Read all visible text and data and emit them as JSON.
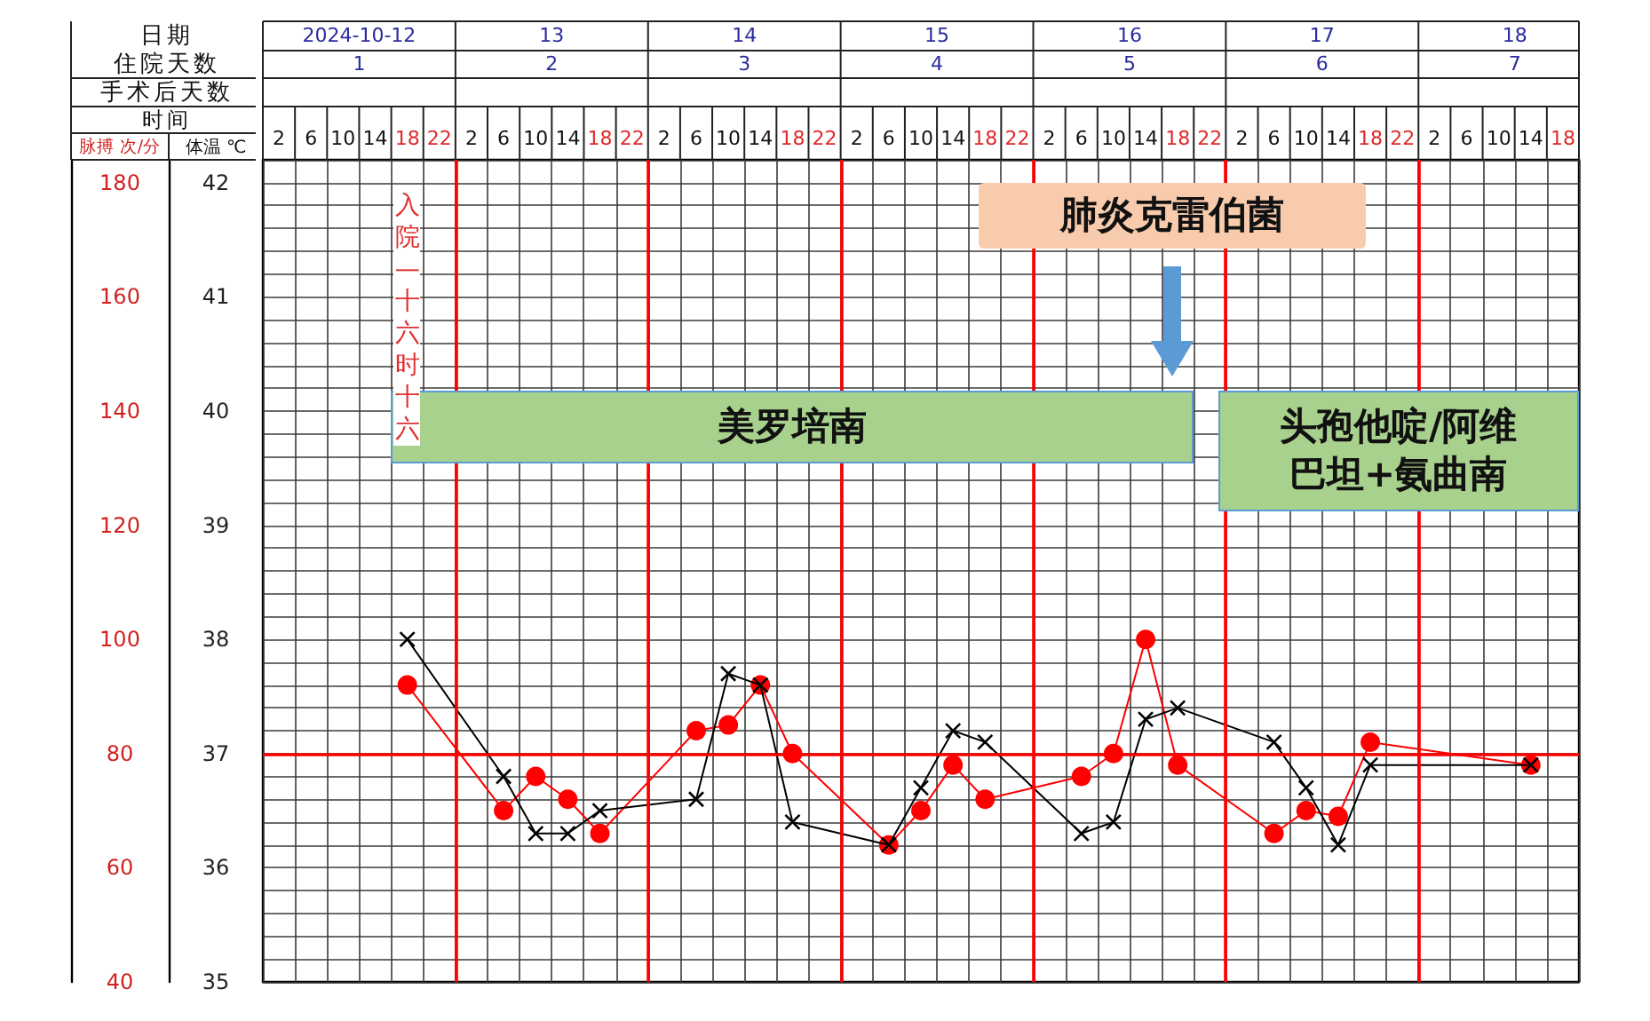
{
  "chart_data": {
    "type": "line",
    "xlabel": "时间",
    "x2label": "日期",
    "ylabel": "体温 ℃",
    "y2label": "脉搏 次/分",
    "x": [
      "2024-10-12T18:00",
      "2024-10-13T06:00",
      "2024-10-13T10:00",
      "2024-10-13T14:00",
      "2024-10-13T18:00",
      "2024-10-14T06:00",
      "2024-10-14T10:00",
      "2024-10-14T14:00",
      "2024-10-14T18:00",
      "2024-10-15T06:00",
      "2024-10-15T10:00",
      "2024-10-15T14:00",
      "2024-10-15T18:00",
      "2024-10-16T06:00",
      "2024-10-16T10:00",
      "2024-10-16T14:00",
      "2024-10-16T18:00",
      "2024-10-17T06:00",
      "2024-10-17T10:00",
      "2024-10-17T14:00",
      "2024-10-17T18:00",
      "2024-10-18T14:00"
    ],
    "series": [
      {
        "color": "#ff0000",
        "axis": "y2",
        "marker": "circle",
        "values": [
          92,
          70,
          76,
          72,
          66,
          84,
          85,
          92,
          80,
          64,
          70,
          78,
          72,
          76,
          80,
          100,
          78,
          66,
          70,
          69,
          82,
          78
        ]
      },
      {
        "color": "#000000",
        "marker": "cross",
        "values": [
          38.0,
          36.8,
          36.3,
          36.3,
          36.5,
          36.6,
          37.7,
          37.6,
          36.4,
          36.2,
          36.7,
          37.2,
          37.1,
          36.3,
          36.4,
          37.3,
          37.4,
          37.1,
          36.7,
          36.2,
          36.9,
          36.9
        ]
      }
    ],
    "xlim": [
      "2024-10-12T00:00",
      "2024-10-18T20:00"
    ],
    "xticks": [
      {
        "value": "2024-10-12T02:00",
        "label": "2"
      },
      {
        "value": "2024-10-12T06:00",
        "label": "6"
      },
      {
        "value": "2024-10-12T10:00",
        "label": "10"
      },
      {
        "value": "2024-10-12T14:00",
        "label": "14"
      },
      {
        "value": "2024-10-12T18:00",
        "label": "18"
      },
      {
        "value": "2024-10-12T22:00",
        "label": "22"
      },
      {
        "value": "2024-10-13T02:00",
        "label": "2"
      },
      {
        "value": "2024-10-13T06:00",
        "label": "6"
      },
      {
        "value": "2024-10-13T10:00",
        "label": "10"
      },
      {
        "value": "2024-10-13T14:00",
        "label": "14"
      },
      {
        "value": "2024-10-13T18:00",
        "label": "18"
      },
      {
        "value": "2024-10-13T22:00",
        "label": "22"
      },
      {
        "value": "2024-10-14T02:00",
        "label": "2"
      },
      {
        "value": "2024-10-14T06:00",
        "label": "6"
      },
      {
        "value": "2024-10-14T10:00",
        "label": "10"
      },
      {
        "value": "2024-10-14T14:00",
        "label": "14"
      },
      {
        "value": "2024-10-14T18:00",
        "label": "18"
      },
      {
        "value": "2024-10-14T22:00",
        "label": "22"
      },
      {
        "value": "2024-10-15T02:00",
        "label": "2"
      },
      {
        "value": "2024-10-15T06:00",
        "label": "6"
      },
      {
        "value": "2024-10-15T10:00",
        "label": "10"
      },
      {
        "value": "2024-10-15T14:00",
        "label": "14"
      },
      {
        "value": "2024-10-15T18:00",
        "label": "18"
      },
      {
        "value": "2024-10-15T22:00",
        "label": "22"
      },
      {
        "value": "2024-10-16T02:00",
        "label": "2"
      },
      {
        "value": "2024-10-16T06:00",
        "label": "6"
      },
      {
        "value": "2024-10-16T10:00",
        "label": "10"
      },
      {
        "value": "2024-10-16T14:00",
        "label": "14"
      },
      {
        "value": "2024-10-16T18:00",
        "label": "18"
      },
      {
        "value": "2024-10-16T22:00",
        "label": "22"
      },
      {
        "value": "2024-10-17T02:00",
        "label": "2"
      },
      {
        "value": "2024-10-17T06:00",
        "label": "6"
      },
      {
        "value": "2024-10-17T10:00",
        "label": "10"
      },
      {
        "value": "2024-10-17T14:00",
        "label": "14"
      },
      {
        "value": "2024-10-17T18:00",
        "label": "18"
      },
      {
        "value": "2024-10-17T22:00",
        "label": "22"
      },
      {
        "value": "2024-10-18T02:00",
        "label": "2"
      },
      {
        "value": "2024-10-18T06:00",
        "label": "6"
      },
      {
        "value": "2024-10-18T10:00",
        "label": "10"
      },
      {
        "value": "2024-10-18T14:00",
        "label": "14"
      },
      {
        "value": "2024-10-18T18:00",
        "label": "18"
      }
    ],
    "x2lim": [
      "2024-10-12T00:00",
      "2024-10-18T20:00"
    ],
    "x2ticks": [
      {
        "value": "2024-10-12T12:00",
        "label": "2024-10-12"
      },
      {
        "value": "2024-10-13T12:00",
        "label": "13"
      },
      {
        "value": "2024-10-14T12:00",
        "label": "14"
      },
      {
        "value": "2024-10-15T12:00",
        "label": "15"
      },
      {
        "value": "2024-10-16T12:00",
        "label": "16"
      },
      {
        "value": "2024-10-17T12:00",
        "label": "17"
      },
      {
        "value": "2024-10-18T12:00",
        "label": "18"
      }
    ],
    "ylim": [
      35,
      42.2
    ],
    "yticks": [
      35,
      36,
      37,
      38,
      39,
      40,
      41,
      42
    ],
    "y2lim": [
      40,
      184
    ],
    "y2ticks": [
      40,
      60,
      80,
      100,
      120,
      140,
      160,
      180
    ],
    "grid": true,
    "line_style": "solid",
    "ref_lines": [
      {
        "axis": "y",
        "value": 37,
        "color": "#ff0000"
      },
      {
        "axis": "x",
        "value": "2024-10-13",
        "color": "#ff0000"
      },
      {
        "axis": "x",
        "value": "2024-10-14",
        "color": "#ff0000"
      },
      {
        "axis": "x",
        "value": "2024-10-15",
        "color": "#ff0000"
      },
      {
        "axis": "x",
        "value": "2024-10-16",
        "color": "#ff0000"
      },
      {
        "axis": "x",
        "value": "2024-10-17",
        "color": "#ff0000"
      },
      {
        "axis": "x",
        "value": "2024-10-18",
        "color": "#ff0000"
      }
    ],
    "bands": [
      {
        "axis": "x",
        "from": "2024-10-12T16:00",
        "to": "2024-10-16T20:00",
        "label": "美罗培南",
        "color": "#a9d18e"
      },
      {
        "axis": "x",
        "from": "2024-10-16T23:00",
        "to": "2024-10-18T20:00",
        "label": "头孢他啶/阿维巴坦+氨曲南",
        "color": "#a9d18e"
      }
    ],
    "annotations": [
      "入院—十六时十六",
      "肺炎克雷伯菌",
      "住院天数",
      "1",
      "2",
      "3",
      "4",
      "5",
      "6",
      "7",
      "手术后天数"
    ]
  }
}
